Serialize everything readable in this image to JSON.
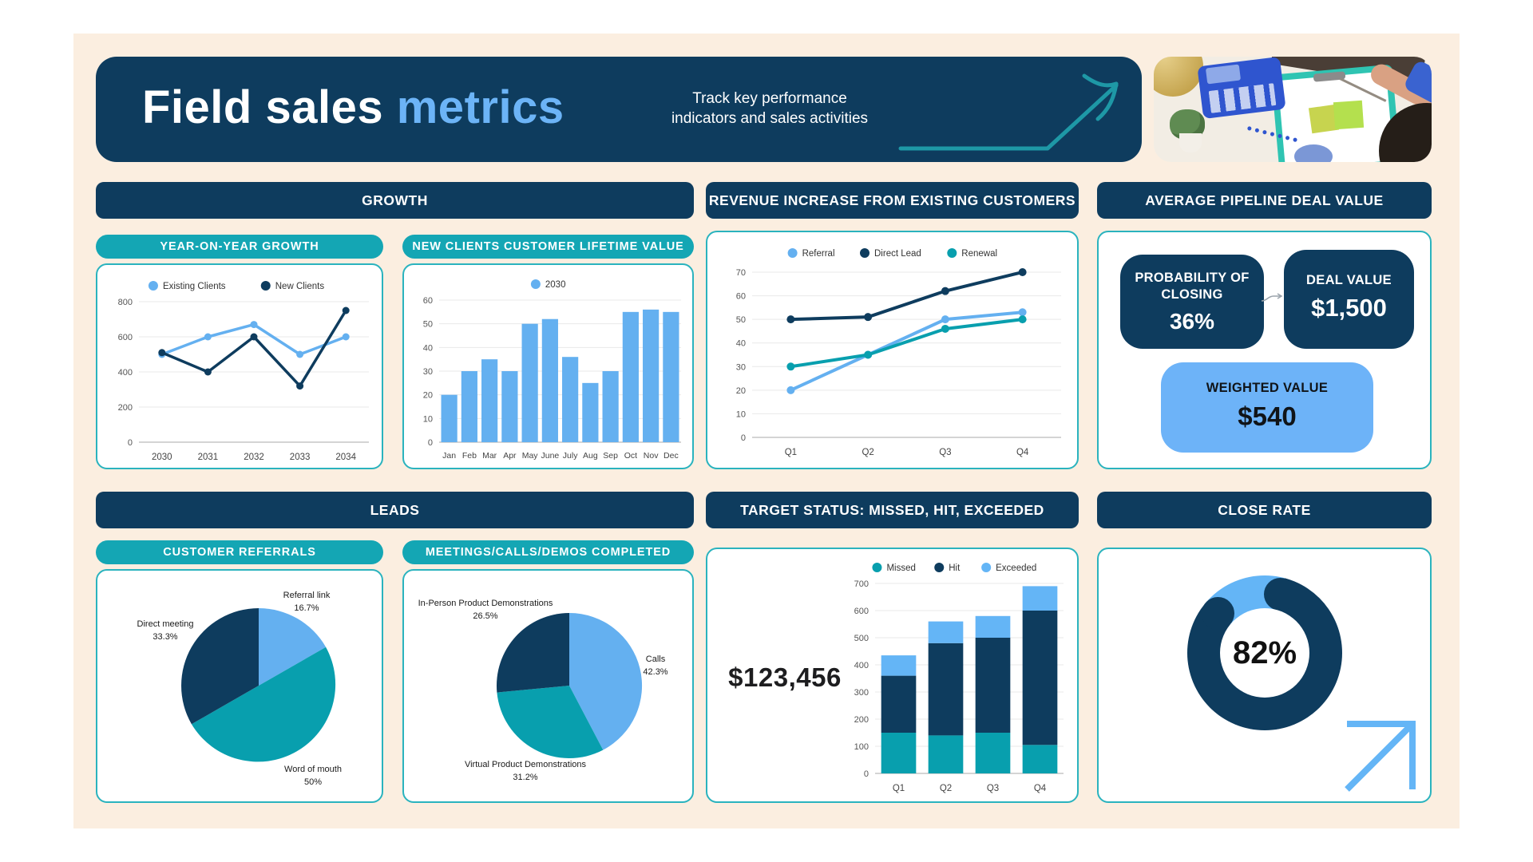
{
  "header": {
    "title_primary": "Field sales",
    "title_accent": "metrics",
    "subtitle": "Track key performance indicators and sales activities"
  },
  "colors": {
    "navy": "#0e3c5e",
    "teal_pill": "#14a6b4",
    "chart_teal": "#089fae",
    "light_blue": "#64b0f0",
    "cream": "#fbeee0",
    "arrow_teal": "#1e98a6"
  },
  "sections": {
    "growth": "GROWTH",
    "revenue": "REVENUE INCREASE FROM EXISTING CUSTOMERS",
    "pipeline": "AVERAGE PIPELINE DEAL VALUE",
    "leads": "LEADS",
    "target": "TARGET STATUS: MISSED, HIT, EXCEEDED",
    "close_rate": "CLOSE RATE"
  },
  "pills": {
    "yoy": "YEAR-ON-YEAR GROWTH",
    "clv": "NEW CLIENTS CUSTOMER LIFETIME VALUE",
    "referrals": "CUSTOMER REFERRALS",
    "meetings": "MEETINGS/CALLS/DEMOS COMPLETED"
  },
  "pipeline": {
    "probability_label": "PROBABILITY OF CLOSING",
    "probability_value": "36%",
    "deal_label": "DEAL VALUE",
    "deal_value": "$1,500",
    "weighted_label": "WEIGHTED VALUE",
    "weighted_value": "$540"
  },
  "target_status": {
    "amount": "$123,456"
  },
  "chart_data": [
    {
      "id": "yoy",
      "type": "line",
      "title": "YEAR-ON-YEAR GROWTH",
      "x": [
        "2030",
        "2031",
        "2032",
        "2033",
        "2034"
      ],
      "series": [
        {
          "name": "Existing Clients",
          "color": "#64b0f0",
          "values": [
            500,
            600,
            670,
            500,
            600
          ]
        },
        {
          "name": "New Clients",
          "color": "#0e3c5e",
          "values": [
            510,
            400,
            600,
            320,
            750
          ]
        }
      ],
      "ylim": [
        0,
        800
      ],
      "yticks": [
        0,
        200,
        400,
        600,
        800
      ],
      "legend_position": "top"
    },
    {
      "id": "clv",
      "type": "bar",
      "title": "NEW CLIENTS CUSTOMER LIFETIME VALUE",
      "categories": [
        "Jan",
        "Feb",
        "Mar",
        "Apr",
        "May",
        "June",
        "July",
        "Aug",
        "Sep",
        "Oct",
        "Nov",
        "Dec"
      ],
      "series": [
        {
          "name": "2030",
          "color": "#64b0f0",
          "values": [
            20,
            30,
            35,
            30,
            50,
            52,
            36,
            25,
            30,
            55,
            56,
            55
          ]
        }
      ],
      "ylim": [
        0,
        60
      ],
      "yticks": [
        0,
        10,
        20,
        30,
        40,
        50,
        60
      ],
      "legend_position": "top"
    },
    {
      "id": "revenue",
      "type": "line",
      "title": "REVENUE INCREASE FROM EXISTING CUSTOMERS",
      "x": [
        "Q1",
        "Q2",
        "Q3",
        "Q4"
      ],
      "series": [
        {
          "name": "Referral",
          "color": "#64b0f0",
          "values": [
            20,
            35,
            50,
            53
          ]
        },
        {
          "name": "Direct Lead",
          "color": "#0e3c5e",
          "values": [
            50,
            51,
            62,
            70
          ]
        },
        {
          "name": "Renewal",
          "color": "#089fae",
          "values": [
            30,
            35,
            46,
            50
          ]
        }
      ],
      "ylim": [
        0,
        70
      ],
      "yticks": [
        0,
        10,
        20,
        30,
        40,
        50,
        60,
        70
      ],
      "legend_position": "top"
    },
    {
      "id": "target",
      "type": "stacked-bar",
      "title": "TARGET STATUS: MISSED, HIT, EXCEEDED",
      "categories": [
        "Q1",
        "Q2",
        "Q3",
        "Q4"
      ],
      "series": [
        {
          "name": "Missed",
          "color": "#089fae",
          "values": [
            150,
            140,
            150,
            105
          ]
        },
        {
          "name": "Hit",
          "color": "#0e3c5e",
          "values": [
            210,
            340,
            350,
            495
          ]
        },
        {
          "name": "Exceeded",
          "color": "#64b5f6",
          "values": [
            75,
            80,
            80,
            90
          ]
        }
      ],
      "ylim": [
        0,
        700
      ],
      "yticks": [
        0,
        100,
        200,
        300,
        400,
        500,
        600,
        700
      ],
      "legend_position": "top"
    },
    {
      "id": "referrals",
      "type": "pie",
      "title": "CUSTOMER REFERRALS",
      "slices": [
        {
          "label": "Referral link",
          "pct": 16.7,
          "pct_label": "16.7%",
          "color": "#64b0f0"
        },
        {
          "label": "Word of mouth",
          "pct": 50,
          "pct_label": "50%",
          "color": "#089fae"
        },
        {
          "label": "Direct meeting",
          "pct": 33.3,
          "pct_label": "33.3%",
          "color": "#0e3c5e"
        }
      ]
    },
    {
      "id": "meetings",
      "type": "pie",
      "title": "MEETINGS/CALLS/DEMOS COMPLETED",
      "slices": [
        {
          "label": "Calls",
          "pct": 42.3,
          "pct_label": "42.3%",
          "color": "#64b0f0"
        },
        {
          "label": "Virtual Product Demonstrations",
          "pct": 31.2,
          "pct_label": "31.2%",
          "color": "#089fae"
        },
        {
          "label": "In-Person Product Demonstrations",
          "pct": 26.5,
          "pct_label": "26.5%",
          "color": "#0e3c5e"
        }
      ]
    },
    {
      "id": "close_rate",
      "type": "donut",
      "title": "CLOSE RATE",
      "value": 82,
      "center_label": "82%",
      "color_filled": "#0e3c5e",
      "color_rest": "#64b5f6",
      "start_angle_deg": 15
    }
  ]
}
